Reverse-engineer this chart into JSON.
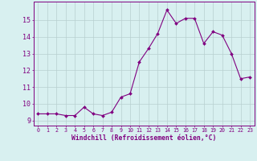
{
  "x": [
    0,
    1,
    2,
    3,
    4,
    5,
    6,
    7,
    8,
    9,
    10,
    11,
    12,
    13,
    14,
    15,
    16,
    17,
    18,
    19,
    20,
    21,
    22,
    23
  ],
  "y": [
    9.4,
    9.4,
    9.4,
    9.3,
    9.3,
    9.8,
    9.4,
    9.3,
    9.5,
    10.4,
    10.6,
    12.5,
    13.3,
    14.2,
    15.6,
    14.8,
    15.1,
    15.1,
    13.6,
    14.3,
    14.1,
    13.0,
    11.5,
    11.6
  ],
  "line_color": "#800080",
  "marker": "D",
  "marker_size": 2.0,
  "bg_color": "#d8f0f0",
  "grid_color": "#b8d0d0",
  "xlabel": "Windchill (Refroidissement éolien,°C)",
  "xlabel_color": "#800080",
  "ylabel_values": [
    9,
    10,
    11,
    12,
    13,
    14,
    15
  ],
  "ylim": [
    8.7,
    16.1
  ],
  "xlim": [
    -0.5,
    23.5
  ],
  "xtick_labels": [
    "0",
    "1",
    "2",
    "3",
    "4",
    "5",
    "6",
    "7",
    "8",
    "9",
    "10",
    "11",
    "12",
    "13",
    "14",
    "15",
    "16",
    "17",
    "18",
    "19",
    "20",
    "21",
    "22",
    "23"
  ],
  "tick_color": "#800080",
  "spine_color": "#800080"
}
